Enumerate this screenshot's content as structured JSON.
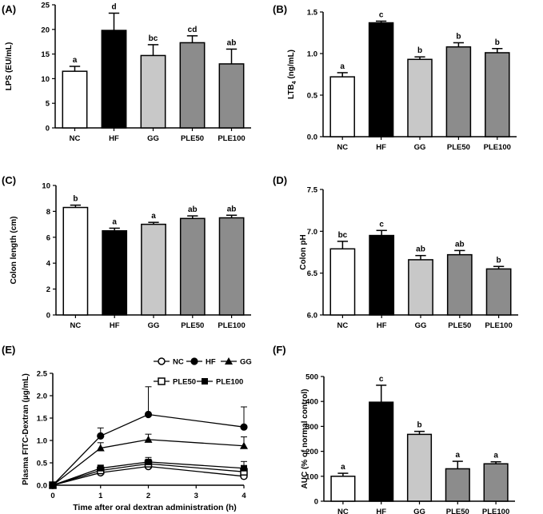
{
  "chart_data": [
    {
      "panel_label": "(A)",
      "type": "bar",
      "ylabel": "LPS (EU/mL)",
      "ylim": [
        0,
        25
      ],
      "yticks": [
        0,
        5,
        10,
        15,
        20,
        25
      ],
      "ytick_labels": [
        "0",
        "5",
        "10",
        "15",
        "20",
        "25"
      ],
      "categories": [
        "NC",
        "HF",
        "GG",
        "PLE50",
        "PLE100"
      ],
      "values": [
        11.5,
        19.8,
        14.7,
        17.3,
        13.0
      ],
      "errors": [
        1.0,
        3.5,
        2.2,
        1.4,
        3.0
      ],
      "letters": [
        "a",
        "d",
        "bc",
        "cd",
        "ab"
      ],
      "colors": [
        "#ffffff",
        "#000000",
        "#c8c8c8",
        "#8c8c8c",
        "#8c8c8c"
      ]
    },
    {
      "panel_label": "(B)",
      "type": "bar",
      "ylabel": "LTB",
      "ylabel_sub": "4",
      "ylabel_unit": " (ng/mL)",
      "ylim": [
        0,
        1.5
      ],
      "yticks": [
        0,
        0.5,
        1.0,
        1.5
      ],
      "ytick_labels": [
        "0.0",
        "0.5",
        "1.0",
        "1.5"
      ],
      "categories": [
        "NC",
        "HF",
        "GG",
        "PLE50",
        "PLE100"
      ],
      "values": [
        0.72,
        1.37,
        0.93,
        1.08,
        1.01
      ],
      "errors": [
        0.05,
        0.02,
        0.03,
        0.05,
        0.05
      ],
      "letters": [
        "a",
        "c",
        "b",
        "b",
        "b"
      ],
      "colors": [
        "#ffffff",
        "#000000",
        "#c8c8c8",
        "#8c8c8c",
        "#8c8c8c"
      ]
    },
    {
      "panel_label": "(C)",
      "type": "bar",
      "ylabel": "Colon length (cm)",
      "ylim": [
        0,
        10
      ],
      "yticks": [
        0,
        2,
        4,
        6,
        8,
        10
      ],
      "ytick_labels": [
        "0",
        "2",
        "4",
        "6",
        "8",
        "10"
      ],
      "categories": [
        "NC",
        "HF",
        "GG",
        "PLE50",
        "PLE100"
      ],
      "values": [
        8.3,
        6.5,
        7.0,
        7.45,
        7.5
      ],
      "errors": [
        0.18,
        0.2,
        0.15,
        0.2,
        0.2
      ],
      "letters": [
        "b",
        "a",
        "a",
        "ab",
        "ab"
      ],
      "colors": [
        "#ffffff",
        "#000000",
        "#c8c8c8",
        "#8c8c8c",
        "#8c8c8c"
      ]
    },
    {
      "panel_label": "(D)",
      "type": "bar",
      "ylabel": "Colon pH",
      "ylim": [
        6.0,
        7.5
      ],
      "yticks": [
        6.0,
        6.5,
        7.0,
        7.5
      ],
      "ytick_labels": [
        "6.0",
        "6.5",
        "7.0",
        "7.5"
      ],
      "categories": [
        "NC",
        "HF",
        "GG",
        "PLE50",
        "PLE100"
      ],
      "values": [
        6.79,
        6.95,
        6.66,
        6.72,
        6.55
      ],
      "errors": [
        0.09,
        0.06,
        0.05,
        0.05,
        0.03
      ],
      "letters": [
        "bc",
        "c",
        "ab",
        "ab",
        "b"
      ],
      "colors": [
        "#ffffff",
        "#000000",
        "#c8c8c8",
        "#8c8c8c",
        "#8c8c8c"
      ]
    },
    {
      "panel_label": "(E)",
      "type": "line",
      "ylabel": "Plasma FITC-Dextran (µg/mL)",
      "xlabel": "Time after oral dextran administration (h)",
      "xlim": [
        0,
        4
      ],
      "ylim": [
        0,
        2.5
      ],
      "xticks": [
        0,
        1,
        2,
        3,
        4
      ],
      "xtick_labels": [
        "0",
        "1",
        "2",
        "3",
        "4"
      ],
      "yticks": [
        0,
        0.5,
        1.0,
        1.5,
        2.0,
        2.5
      ],
      "ytick_labels": [
        "0.0",
        "0.5",
        "1.0",
        "1.5",
        "2.0",
        "2.5"
      ],
      "x": [
        0,
        1,
        2,
        4
      ],
      "series": [
        {
          "name": "NC",
          "marker": "open-circle",
          "values": [
            0,
            0.28,
            0.42,
            0.2
          ],
          "errors": [
            0,
            0.05,
            0.1,
            0.05
          ]
        },
        {
          "name": "HF",
          "marker": "filled-circle",
          "values": [
            0,
            1.1,
            1.58,
            1.3
          ],
          "errors": [
            0,
            0.18,
            0.62,
            0.45
          ]
        },
        {
          "name": "GG",
          "marker": "filled-triangle",
          "values": [
            0,
            0.83,
            1.02,
            0.88
          ],
          "errors": [
            0,
            0.12,
            0.12,
            0.2
          ]
        },
        {
          "name": "PLE50",
          "marker": "open-square",
          "values": [
            0,
            0.33,
            0.48,
            0.3
          ],
          "errors": [
            0,
            0.06,
            0.1,
            0.08
          ]
        },
        {
          "name": "PLE100",
          "marker": "filled-square",
          "values": [
            0,
            0.38,
            0.52,
            0.38
          ],
          "errors": [
            0,
            0.07,
            0.1,
            0.15
          ]
        }
      ]
    },
    {
      "panel_label": "(F)",
      "type": "bar",
      "ylabel": "AUC (% of normal control)",
      "ylim": [
        0,
        500
      ],
      "yticks": [
        0,
        100,
        200,
        300,
        400,
        500
      ],
      "ytick_labels": [
        "0",
        "100",
        "200",
        "300",
        "400",
        "500"
      ],
      "categories": [
        "NC",
        "HF",
        "GG",
        "PLE50",
        "PLE100"
      ],
      "values": [
        100,
        397,
        268,
        130,
        150
      ],
      "errors": [
        12,
        68,
        12,
        30,
        8
      ],
      "letters": [
        "a",
        "c",
        "b",
        "a",
        "a"
      ],
      "colors": [
        "#ffffff",
        "#000000",
        "#c8c8c8",
        "#8c8c8c",
        "#8c8c8c"
      ]
    }
  ]
}
